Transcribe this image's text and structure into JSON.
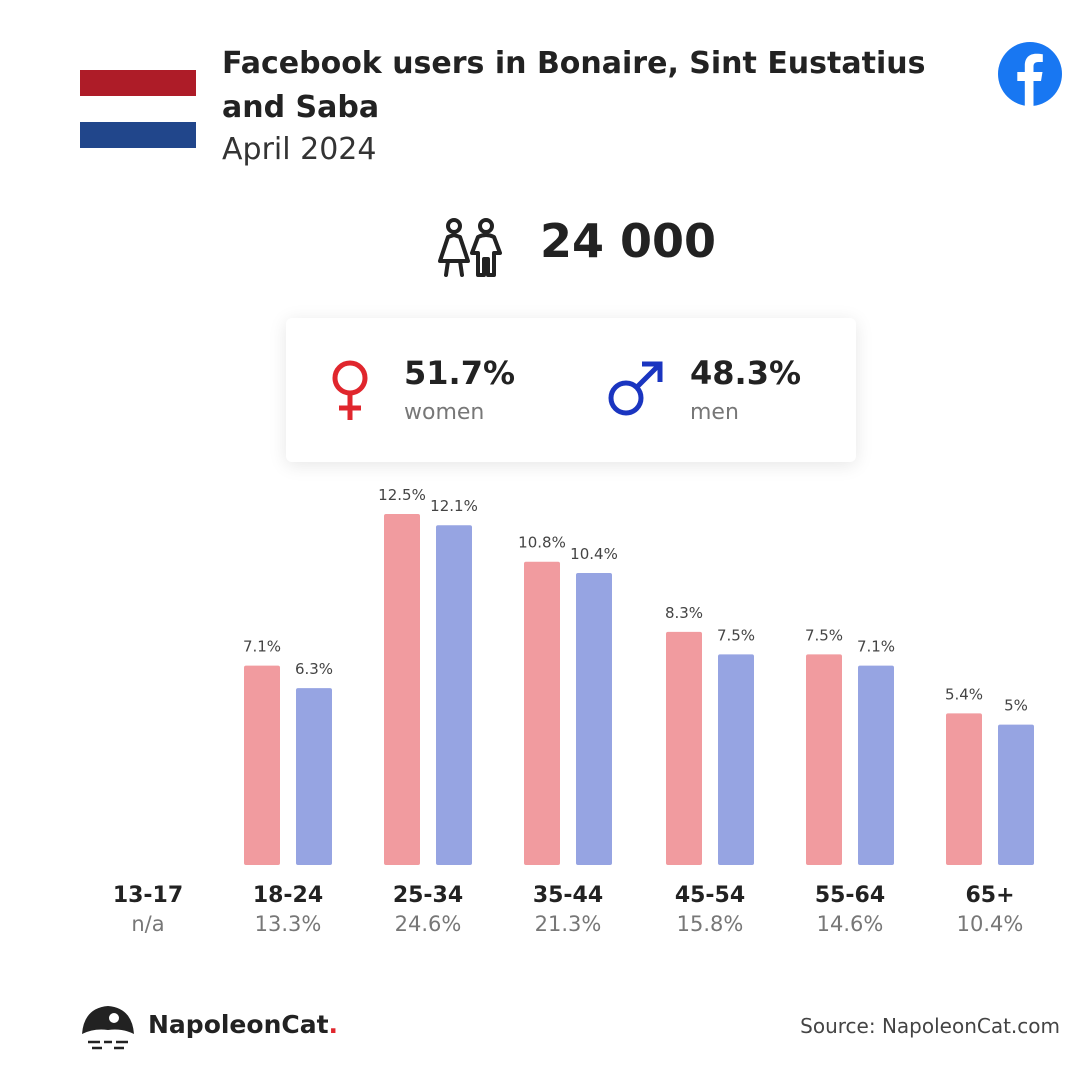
{
  "header": {
    "title": "Facebook users in Bonaire, Sint Eustatius and Saba",
    "subtitle": "April 2024"
  },
  "flag_colors": [
    "#ae1c28",
    "#ffffff",
    "#21468b"
  ],
  "total": {
    "value": "24 000",
    "icon": "people-icon"
  },
  "gender": {
    "women": {
      "pct": "51.7%",
      "label": "women",
      "icon": "female-symbol-icon",
      "color": "#e0262d"
    },
    "men": {
      "pct": "48.3%",
      "label": "men",
      "icon": "male-symbol-icon",
      "color": "#1a35c0"
    }
  },
  "colors": {
    "women_bar": "#f19b9f",
    "men_bar": "#96a4e2",
    "facebook_blue": "#1877f2"
  },
  "chart_data": {
    "type": "bar",
    "categories": [
      "13-17",
      "18-24",
      "25-34",
      "35-44",
      "45-54",
      "55-64",
      "65+"
    ],
    "series": [
      {
        "values": [
          null,
          7.1,
          12.5,
          10.8,
          8.3,
          7.5,
          5.4
        ],
        "labels": [
          "",
          "7.1%",
          "12.5%",
          "10.8%",
          "8.3%",
          "7.5%",
          "5.4%"
        ]
      },
      {
        "values": [
          null,
          6.3,
          12.1,
          10.4,
          7.5,
          7.1,
          5.0
        ],
        "labels": [
          "",
          "6.3%",
          "12.1%",
          "10.4%",
          "7.5%",
          "7.1%",
          "5%"
        ]
      }
    ],
    "category_totals": [
      "n/a",
      "13.3%",
      "24.6%",
      "21.3%",
      "15.8%",
      "14.6%",
      "10.4%"
    ],
    "ylim": [
      0,
      12.5
    ],
    "grid": false
  },
  "footer": {
    "brand": "NapoleonCat",
    "brand_dot": ".",
    "source": "Source: NapoleonCat.com"
  }
}
